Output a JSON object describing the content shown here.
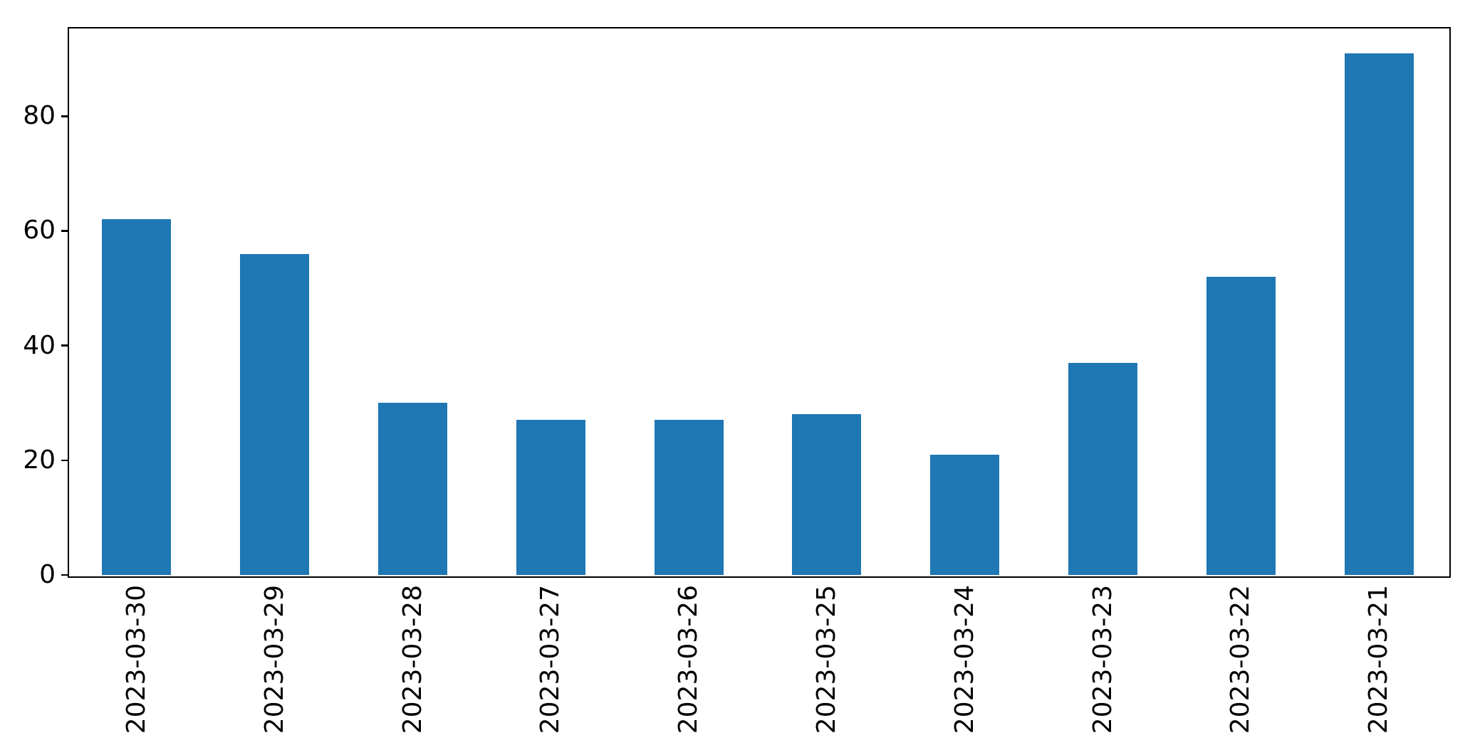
{
  "figure": {
    "background": "#ffffff",
    "spine_color": "#000000",
    "text_color": "#000000"
  },
  "chart_data": {
    "type": "bar",
    "title": "",
    "xlabel": "",
    "ylabel": "",
    "categories": [
      "2023-03-30",
      "2023-03-29",
      "2023-03-28",
      "2023-03-27",
      "2023-03-26",
      "2023-03-25",
      "2023-03-24",
      "2023-03-23",
      "2023-03-22",
      "2023-03-21"
    ],
    "values": [
      62,
      56,
      30,
      27,
      27,
      28,
      21,
      37,
      52,
      91
    ],
    "yticks": [
      0,
      20,
      40,
      60,
      80
    ],
    "ytick_labels": [
      "0",
      "20",
      "40",
      "60",
      "80"
    ],
    "ylim": [
      0,
      95.55
    ],
    "bar_color": "#1f77b4",
    "bar_width_fraction": 0.5,
    "x_tick_rotation": 90,
    "grid": false,
    "legend": false
  }
}
